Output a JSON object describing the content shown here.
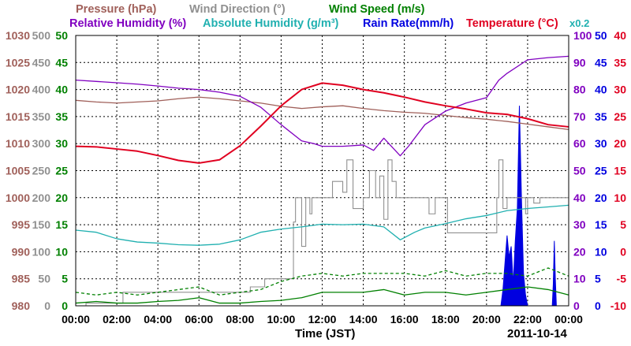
{
  "chart_data": {
    "type": "line",
    "date_label": "2011-10-14",
    "xlabel": "Time (JST)",
    "x_ticks": [
      "00:00",
      "02:00",
      "04:00",
      "06:00",
      "08:00",
      "10:00",
      "12:00",
      "14:00",
      "16:00",
      "18:00",
      "20:00",
      "22:00",
      "00:00"
    ],
    "x_range_hours": [
      0,
      24
    ],
    "scale_note": "x0.2",
    "colors": {
      "pressure": "#a0605a",
      "wind_direction": "#909090",
      "wind_speed": "#008000",
      "humidity": "#8000c0",
      "abs_humidity": "#20b0b0",
      "rain_rate": "#0000e0",
      "temperature": "#e00020",
      "grid": "#000000"
    },
    "legend_row1": [
      {
        "key": "pressure",
        "text": "Pressure (hPa)"
      },
      {
        "key": "wind_direction",
        "text": "Wind Direction (°)"
      },
      {
        "key": "wind_speed",
        "text": "Wind Speed (m/s)"
      }
    ],
    "legend_row2": [
      {
        "key": "humidity",
        "text": "Relative Humidity (%)"
      },
      {
        "key": "abs_humidity",
        "text": "Absolute Humidity (g/m³)"
      },
      {
        "key": "rain_rate",
        "text": "Rain Rate(mm/h)"
      },
      {
        "key": "temperature",
        "text": "Temperature (°C)"
      }
    ],
    "axes": {
      "pressure": {
        "ticks": [
          "1030",
          "1025",
          "1020",
          "1015",
          "1010",
          "1005",
          "1000",
          "995",
          "990",
          "985",
          "980"
        ],
        "range": [
          980,
          1030
        ]
      },
      "wind_direction": {
        "ticks": [
          "500",
          "450",
          "400",
          "350",
          "300",
          "250",
          "200",
          "150",
          "100",
          "50",
          "0"
        ],
        "range": [
          0,
          500
        ]
      },
      "wind_speed": {
        "ticks": [
          "50",
          "45",
          "40",
          "35",
          "30",
          "25",
          "20",
          "15",
          "10",
          "5",
          "0"
        ],
        "range": [
          0,
          50
        ]
      },
      "humidity": {
        "ticks": [
          "100",
          "90",
          "80",
          "70",
          "60",
          "50",
          "40",
          "30",
          "20",
          "10",
          "0"
        ],
        "range": [
          0,
          100
        ]
      },
      "rain_rate": {
        "ticks": [
          "50",
          "45",
          "40",
          "35",
          "30",
          "25",
          "20",
          "15",
          "10",
          "5",
          "0"
        ],
        "range": [
          0,
          50
        ]
      },
      "temperature": {
        "ticks": [
          "40",
          "35",
          "30",
          "25",
          "20",
          "15",
          "10",
          "5",
          "0",
          "-5",
          "-10"
        ],
        "range": [
          -10,
          40
        ]
      }
    },
    "series": [
      {
        "key": "pressure",
        "name": "Pressure (hPa)",
        "style": "line",
        "x": [
          0,
          1,
          2,
          3,
          4,
          5,
          6,
          7,
          8,
          9,
          10,
          11,
          12,
          13,
          14,
          15,
          16,
          17,
          18,
          19,
          20,
          21,
          22,
          23,
          24
        ],
        "y": [
          1018,
          1017.7,
          1017.5,
          1017.7,
          1017.9,
          1018.3,
          1018.6,
          1018.3,
          1017.9,
          1017.5,
          1016.9,
          1016.5,
          1016.8,
          1017,
          1016.5,
          1016.1,
          1015.8,
          1015.6,
          1015.2,
          1014.8,
          1014.5,
          1014.1,
          1013.6,
          1013.1,
          1012.6
        ]
      },
      {
        "key": "wind_direction",
        "name": "Wind Direction (°)",
        "style": "step",
        "x": [
          0,
          0.5,
          2,
          2.3,
          3.5,
          6.1,
          7,
          7.5,
          8,
          8.5,
          9,
          9.2,
          9.6,
          10.6,
          10.7,
          10.9,
          11,
          11.2,
          11.4,
          11.5,
          11.7,
          11.8,
          12,
          12.5,
          13,
          13.2,
          13.5,
          14,
          14.3,
          14.6,
          14.8,
          15,
          15.2,
          15.4,
          15.6,
          15.8,
          16,
          16.5,
          17,
          17.2,
          17.5,
          18,
          18.1,
          18.5,
          19,
          19.5,
          20,
          20.5,
          20.6,
          20.8,
          21,
          21.3,
          21.6,
          21.9,
          22,
          22.3,
          22.6,
          22.9,
          23.1,
          23.5,
          23.8,
          24
        ],
        "y": [
          0,
          5,
          5,
          25,
          25,
          25,
          25,
          25,
          25,
          35,
          35,
          50,
          50,
          155,
          200,
          200,
          110,
          200,
          170,
          200,
          200,
          200,
          200,
          230,
          210,
          270,
          180,
          200,
          250,
          200,
          240,
          160,
          270,
          230,
          200,
          200,
          200,
          200,
          200,
          170,
          200,
          200,
          135,
          135,
          135,
          135,
          135,
          200,
          270,
          180,
          200,
          200,
          200,
          170,
          200,
          190,
          200,
          200,
          200,
          200,
          200,
          200
        ]
      },
      {
        "key": "wind_speed",
        "name": "Wind Speed (m/s)",
        "style": "line",
        "x": [
          0,
          1,
          2,
          3,
          4,
          5,
          6,
          7,
          8,
          9,
          10,
          11,
          12,
          13,
          14,
          15,
          16,
          17,
          18,
          19,
          20,
          21,
          22,
          23,
          24
        ],
        "y": [
          0.5,
          0.8,
          0.5,
          0.5,
          0.8,
          1,
          1.5,
          0.5,
          0.5,
          0.8,
          1,
          1.5,
          2.5,
          2.5,
          2.5,
          3,
          2,
          2.5,
          2.5,
          2,
          2.5,
          3,
          3.5,
          3,
          2
        ]
      },
      {
        "key": "wind_speed",
        "name": "Wind Speed (m/s)",
        "style": "dashed",
        "x": [
          0,
          1,
          2,
          3,
          4,
          5,
          6,
          7,
          8,
          9,
          10,
          11,
          12,
          13,
          14,
          15,
          16,
          17,
          18,
          19,
          20,
          21,
          22,
          23,
          24
        ],
        "y": [
          2.5,
          2,
          2.5,
          2,
          2.5,
          3,
          3.5,
          2,
          2.5,
          3,
          4.5,
          5.5,
          6,
          5.5,
          6,
          6,
          6,
          5.5,
          6.5,
          5.5,
          6,
          6,
          5.5,
          7,
          5.5
        ]
      },
      {
        "key": "humidity",
        "name": "Relative Humidity (%)",
        "style": "line",
        "x": [
          0,
          1,
          2,
          3,
          4,
          5,
          6,
          7,
          8,
          9,
          10,
          11,
          11.6,
          12,
          13,
          14,
          14.5,
          15,
          15.8,
          16.2,
          17,
          18,
          19,
          20,
          20.6,
          21,
          22,
          23,
          24
        ],
        "y": [
          83.5,
          83,
          82.5,
          82,
          81.3,
          80.5,
          80,
          79,
          77.5,
          73.5,
          67,
          61,
          60,
          59,
          59,
          59.5,
          57.5,
          62,
          55.5,
          59,
          67,
          72,
          75,
          77,
          83.5,
          86,
          91,
          91.8,
          92.3
        ]
      },
      {
        "key": "abs_humidity",
        "name": "Absolute Humidity (g/m³)",
        "style": "line",
        "x": [
          0,
          1,
          2,
          3,
          4,
          5,
          6,
          7,
          8,
          9,
          10,
          11,
          12,
          13,
          14,
          15,
          15.8,
          16.5,
          17,
          18,
          19,
          20,
          21,
          22,
          23,
          24
        ],
        "y": [
          14,
          13.6,
          12.4,
          11.8,
          11.6,
          11.3,
          11.2,
          11.4,
          12.2,
          13.6,
          14.2,
          14.6,
          15.1,
          15,
          15.1,
          14.6,
          12.2,
          13.6,
          14.4,
          15.2,
          16.1,
          16.7,
          17.6,
          18,
          18.3,
          18.6
        ]
      },
      {
        "key": "rain_rate",
        "name": "Rain Rate(mm/h)",
        "style": "area",
        "x": [
          0,
          20.7,
          20.8,
          20.9,
          21.0,
          21.1,
          21.2,
          21.3,
          21.4,
          21.5,
          21.6,
          21.7,
          21.8,
          21.9,
          22.0,
          23.2,
          23.25,
          23.3,
          23.35,
          23.4,
          24
        ],
        "y": [
          0,
          0,
          3,
          8,
          13,
          9,
          11,
          4,
          12,
          18,
          37,
          20,
          6,
          2,
          0,
          0,
          4,
          12,
          5,
          0,
          0
        ]
      },
      {
        "key": "temperature",
        "name": "Temperature (°C)",
        "style": "line",
        "x": [
          0,
          1,
          2,
          3,
          4,
          5,
          6,
          7,
          8,
          9,
          10,
          11,
          12,
          13,
          14,
          15,
          16,
          17,
          18,
          19,
          20,
          21,
          22,
          23,
          24
        ],
        "y": [
          19.5,
          19.4,
          19,
          18.6,
          17.8,
          16.9,
          16.4,
          17,
          19.6,
          23.2,
          27,
          30,
          31.2,
          30.8,
          30,
          29.4,
          28.6,
          27.7,
          27,
          26.4,
          25.7,
          25.4,
          24.6,
          23.5,
          23.1
        ]
      }
    ]
  }
}
